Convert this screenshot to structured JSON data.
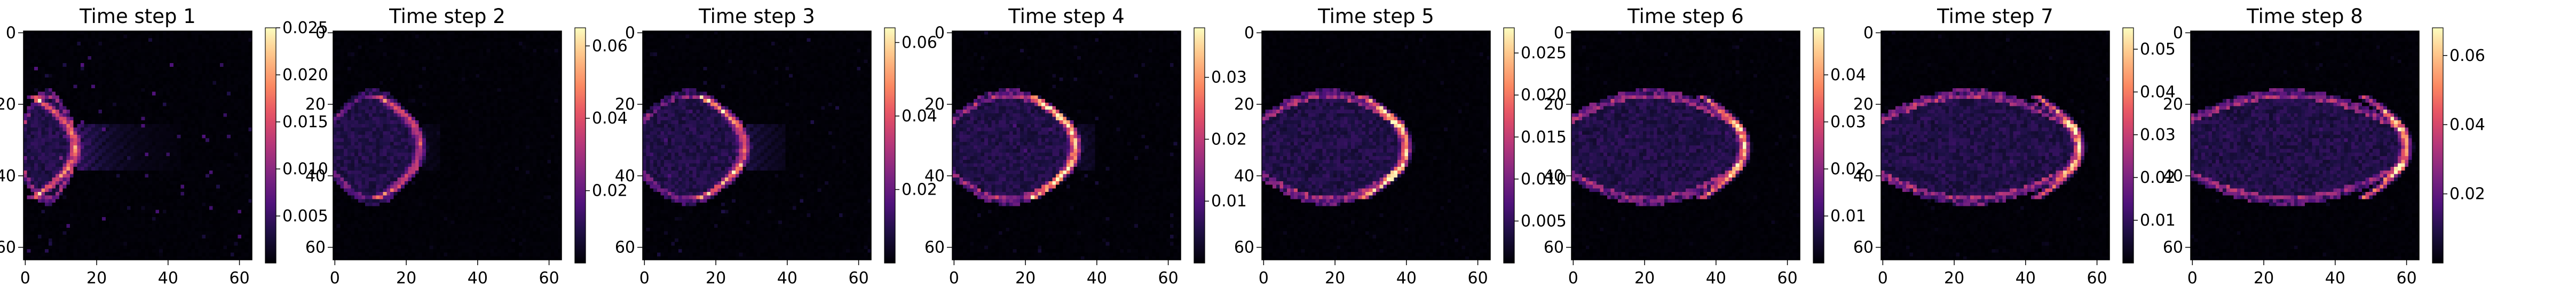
{
  "chart_data": {
    "type": "heatmap",
    "colormap": "magma",
    "grid": false,
    "panels": [
      {
        "title": "Time step 1",
        "xlim": [
          0,
          63
        ],
        "ylim": [
          63,
          0
        ],
        "x_ticks": [
          "0",
          "20",
          "40",
          "60"
        ],
        "y_ticks": [
          "0",
          "20",
          "40",
          "60"
        ],
        "colorbar": {
          "vmin": 0.0,
          "vmax": 0.025,
          "ticks": [
            "0.005",
            "0.010",
            "0.015",
            "0.020",
            "0.025"
          ]
        },
        "features": {
          "front_x": 14,
          "tail_x": 44,
          "front_intensity": 0.8,
          "tail_intensity": 0.25,
          "wisps": 0.25,
          "seed": 11
        }
      },
      {
        "title": "Time step 2",
        "xlim": [
          0,
          63
        ],
        "ylim": [
          63,
          0
        ],
        "x_ticks": [
          "0",
          "20",
          "40",
          "60"
        ],
        "y_ticks": [
          "0",
          "20",
          "40",
          "60"
        ],
        "colorbar": {
          "vmin": 0.0,
          "vmax": 0.065,
          "ticks": [
            "0.02",
            "0.04",
            "0.06"
          ]
        },
        "features": {
          "front_x": 24,
          "tail_x": 30,
          "front_intensity": 0.55,
          "tail_intensity": 0.05,
          "wisps": 0.05,
          "seed": 23
        }
      },
      {
        "title": "Time step 3",
        "xlim": [
          0,
          63
        ],
        "ylim": [
          63,
          0
        ],
        "x_ticks": [
          "0",
          "20",
          "40",
          "60"
        ],
        "y_ticks": [
          "0",
          "20",
          "40",
          "60"
        ],
        "colorbar": {
          "vmin": 0.0,
          "vmax": 0.064,
          "ticks": [
            "0.02",
            "0.04",
            "0.06"
          ]
        },
        "features": {
          "front_x": 28,
          "tail_x": 40,
          "front_intensity": 0.7,
          "tail_intensity": 0.15,
          "wisps": 0.12,
          "seed": 37
        }
      },
      {
        "title": "Time step 4",
        "xlim": [
          0,
          63
        ],
        "ylim": [
          63,
          0
        ],
        "x_ticks": [
          "0",
          "20",
          "40",
          "60"
        ],
        "y_ticks": [
          "0",
          "20",
          "40",
          "60"
        ],
        "colorbar": {
          "vmin": 0.0,
          "vmax": 0.038,
          "ticks": [
            "0.01",
            "0.02",
            "0.03"
          ]
        },
        "features": {
          "front_x": 34,
          "tail_x": 40,
          "front_intensity": 0.9,
          "tail_intensity": 0.1,
          "wisps": 0.1,
          "seed": 41
        }
      },
      {
        "title": "Time step 5",
        "xlim": [
          0,
          63
        ],
        "ylim": [
          63,
          0
        ],
        "x_ticks": [
          "0",
          "20",
          "40",
          "60"
        ],
        "y_ticks": [
          "0",
          "20",
          "40",
          "60"
        ],
        "colorbar": {
          "vmin": 0.0,
          "vmax": 0.028,
          "ticks": [
            "0.005",
            "0.010",
            "0.015",
            "0.020",
            "0.025"
          ]
        },
        "features": {
          "front_x": 40,
          "tail_x": 40,
          "front_intensity": 0.95,
          "tail_intensity": 0.05,
          "wisps": 0.05,
          "seed": 53
        }
      },
      {
        "title": "Time step 6",
        "xlim": [
          0,
          63
        ],
        "ylim": [
          63,
          0
        ],
        "x_ticks": [
          "0",
          "20",
          "40",
          "60"
        ],
        "y_ticks": [
          "0",
          "20",
          "40",
          "60"
        ],
        "colorbar": {
          "vmin": 0.0,
          "vmax": 0.05,
          "ticks": [
            "0.01",
            "0.02",
            "0.03",
            "0.04"
          ]
        },
        "features": {
          "front_x": 48,
          "tail_x": 48,
          "front_intensity": 0.9,
          "tail_intensity": 0.05,
          "wisps": 0.05,
          "seed": 67
        }
      },
      {
        "title": "Time step 7",
        "xlim": [
          0,
          63
        ],
        "ylim": [
          63,
          0
        ],
        "x_ticks": [
          "0",
          "20",
          "40",
          "60"
        ],
        "y_ticks": [
          "0",
          "20",
          "40",
          "60"
        ],
        "colorbar": {
          "vmin": 0.0,
          "vmax": 0.055,
          "ticks": [
            "0.01",
            "0.02",
            "0.03",
            "0.04",
            "0.05"
          ]
        },
        "features": {
          "front_x": 55,
          "tail_x": 55,
          "front_intensity": 0.95,
          "tail_intensity": 0.05,
          "wisps": 0.05,
          "seed": 79
        }
      },
      {
        "title": "Time step 8",
        "xlim": [
          0,
          63
        ],
        "ylim": [
          63,
          0
        ],
        "x_ticks": [
          "0",
          "20",
          "40",
          "60"
        ],
        "y_ticks": [
          "0",
          "20",
          "40",
          "60"
        ],
        "colorbar": {
          "vmin": 0.0,
          "vmax": 0.068,
          "ticks": [
            "0.02",
            "0.04",
            "0.06"
          ]
        },
        "features": {
          "front_x": 60,
          "tail_x": 60,
          "front_intensity": 0.9,
          "tail_intensity": 0.05,
          "wisps": 0.05,
          "seed": 97
        }
      }
    ]
  }
}
